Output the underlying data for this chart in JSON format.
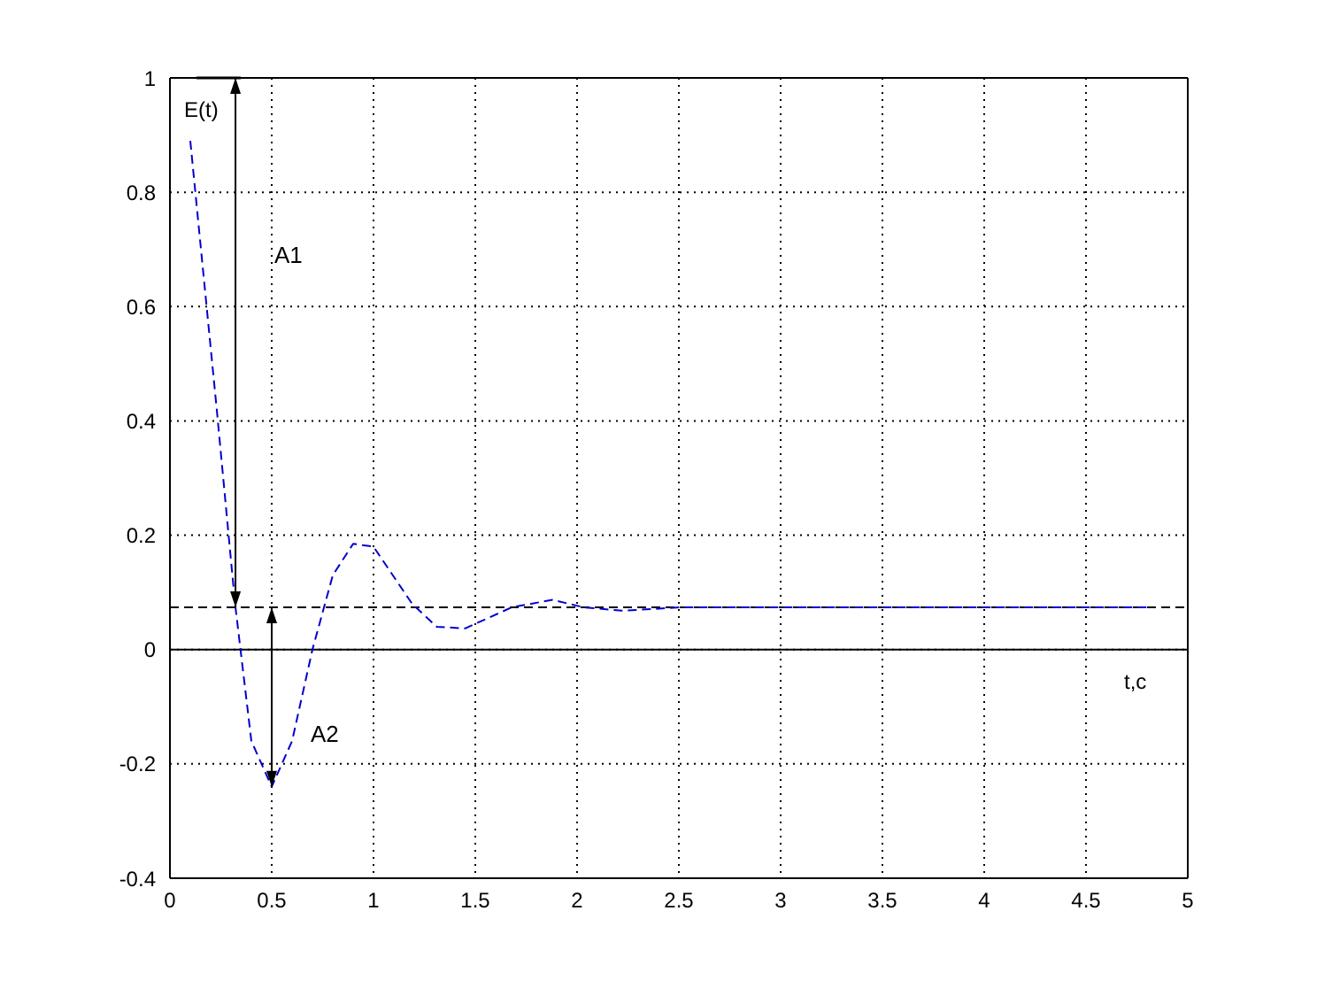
{
  "chart_data": {
    "type": "line",
    "xlabel": "t,c",
    "ylabel": "E(t)",
    "x": [
      0.1,
      0.23,
      0.32,
      0.4,
      0.5,
      0.6,
      0.7,
      0.8,
      0.9,
      1.0,
      1.19,
      1.31,
      1.45,
      1.68,
      1.88,
      2.03,
      2.22,
      2.38,
      2.51,
      4.81
    ],
    "series": [
      {
        "color": "#0000cc",
        "values": [
          0.89,
          0.42,
          0.08,
          -0.16,
          -0.24,
          -0.16,
          0.0,
          0.13,
          0.185,
          0.18,
          0.08,
          0.04,
          0.037,
          0.074,
          0.087,
          0.074,
          0.068,
          0.071,
          0.074,
          0.074
        ]
      }
    ],
    "line_style": "dashed",
    "marker": "none",
    "grid": true,
    "legend": false,
    "xlim": [
      0,
      5
    ],
    "xticks": [
      0,
      0.5,
      1,
      1.5,
      2,
      2.5,
      3,
      3.5,
      4,
      4.5,
      5
    ],
    "ylim": [
      -0.4,
      1
    ],
    "yticks": [
      -0.4,
      -0.2,
      0,
      0.2,
      0.4,
      0.6,
      0.8,
      1
    ],
    "ref_lines": [
      {
        "axis": "y",
        "value": 0.074,
        "color": "#000000",
        "line_style": "dashed"
      }
    ],
    "annotations": [
      "A1",
      "A2"
    ]
  }
}
